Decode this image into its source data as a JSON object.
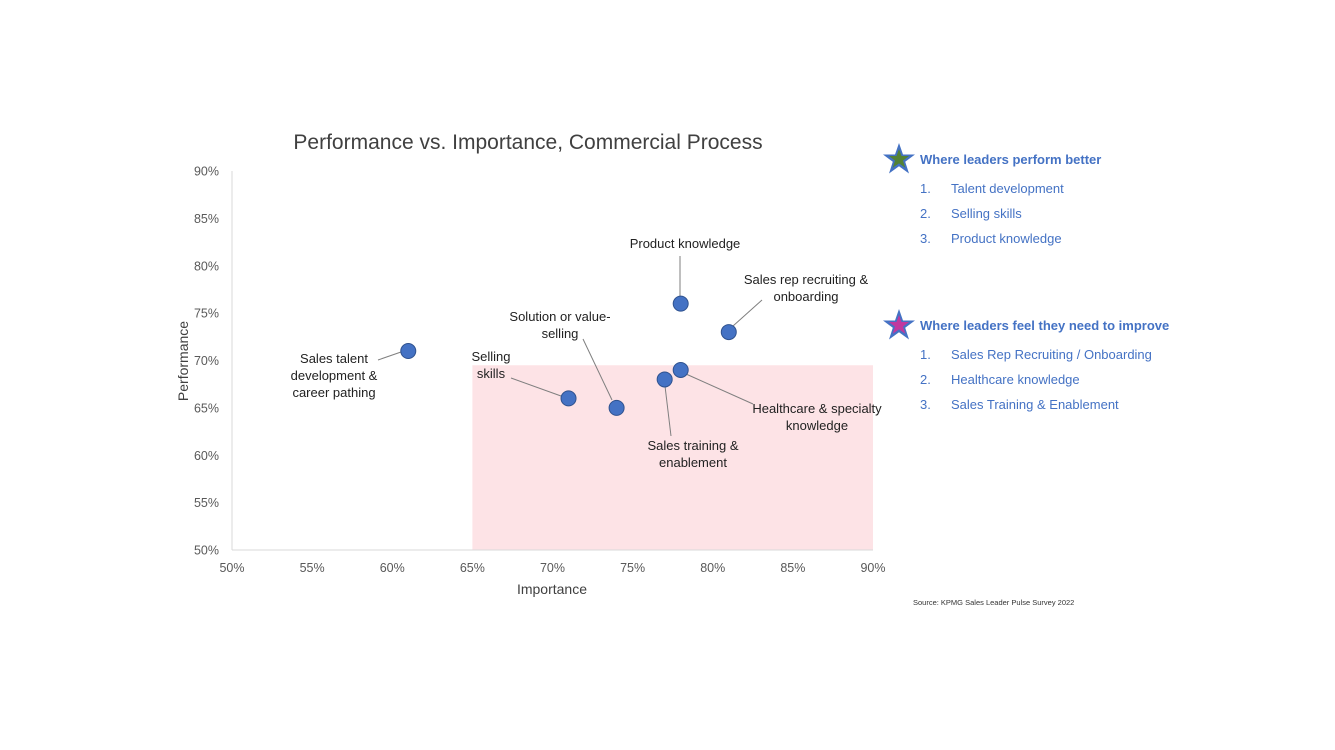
{
  "chart_data": {
    "type": "scatter",
    "title": "Performance vs. Importance, Commercial Process",
    "xlabel": "Importance",
    "ylabel": "Performance",
    "xlim": [
      50,
      90
    ],
    "ylim": [
      50,
      90
    ],
    "x_ticks": [
      "50%",
      "55%",
      "60%",
      "65%",
      "70%",
      "75%",
      "80%",
      "85%",
      "90%"
    ],
    "y_ticks": [
      "50%",
      "55%",
      "60%",
      "65%",
      "70%",
      "75%",
      "80%",
      "85%",
      "90%"
    ],
    "highlight_region": {
      "x": [
        65,
        90
      ],
      "y": [
        50,
        69.5
      ],
      "color": "#fde3e6"
    },
    "point_color": "#4472c4",
    "points": [
      {
        "label": "Sales talent development & career pathing",
        "label_lines": [
          "Sales talent",
          "development &",
          "career pathing"
        ],
        "x": 61,
        "y": 71
      },
      {
        "label": "Selling skills",
        "label_lines": [
          "Selling",
          "skills"
        ],
        "x": 71,
        "y": 66
      },
      {
        "label": "Solution or value-selling",
        "label_lines": [
          "Solution or value-",
          "selling"
        ],
        "x": 74,
        "y": 65
      },
      {
        "label": "Product knowledge",
        "label_lines": [
          "Product knowledge"
        ],
        "x": 78,
        "y": 76
      },
      {
        "label": "Sales rep recruiting & onboarding",
        "label_lines": [
          "Sales rep recruiting &",
          "onboarding"
        ],
        "x": 81,
        "y": 73
      },
      {
        "label": "Sales training & enablement",
        "label_lines": [
          "Sales training &",
          "enablement"
        ],
        "x": 77,
        "y": 68
      },
      {
        "label": "Healthcare & specialty knowledge",
        "label_lines": [
          "Healthcare & specialty",
          "knowledge"
        ],
        "x": 78,
        "y": 69
      }
    ]
  },
  "legend": {
    "better": {
      "title": "Where leaders perform better",
      "star_outer_color": "#4472c4",
      "star_inner_color": "#548235",
      "items": [
        {
          "num": "1.",
          "text": "Talent development"
        },
        {
          "num": "2.",
          "text": "Selling skills"
        },
        {
          "num": "3.",
          "text": "Product knowledge"
        }
      ]
    },
    "improve": {
      "title": "Where leaders feel they need to improve",
      "star_outer_color": "#4472c4",
      "star_inner_color": "#c0399f",
      "items": [
        {
          "num": "1.",
          "text": "Sales Rep Recruiting / Onboarding"
        },
        {
          "num": "2.",
          "text": "Healthcare knowledge"
        },
        {
          "num": "3.",
          "text": "Sales Training & Enablement"
        }
      ]
    }
  },
  "source": "Source: KPMG Sales Leader Pulse Survey 2022"
}
